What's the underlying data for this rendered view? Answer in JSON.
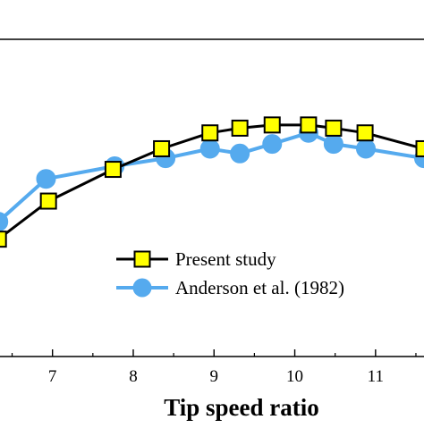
{
  "chart_data": {
    "type": "line",
    "title": "",
    "xlabel": "Tip speed ratio",
    "ylabel": "",
    "xlim": [
      6.35,
      11.6
    ],
    "ylim": [
      0,
      1
    ],
    "x_ticks": [
      7,
      8,
      9,
      10,
      11
    ],
    "x_tick_labels": [
      "7",
      "8",
      "9",
      "10",
      "11"
    ],
    "grid": false,
    "legend_position": "lower-right",
    "series": [
      {
        "name": "Present study",
        "color": "#000000",
        "marker": "square",
        "marker_fill": "#ffff00",
        "x": [
          6.33,
          6.95,
          7.75,
          8.35,
          8.95,
          9.32,
          9.72,
          10.17,
          10.48,
          10.87,
          11.6
        ],
        "y": [
          0.37,
          0.49,
          0.59,
          0.655,
          0.705,
          0.72,
          0.73,
          0.73,
          0.72,
          0.705,
          0.655
        ]
      },
      {
        "name": "Anderson et al. (1982)",
        "color": "#55aaee",
        "marker": "circle",
        "marker_fill": "#55aaee",
        "x": [
          6.33,
          6.92,
          7.77,
          8.4,
          8.95,
          9.32,
          9.72,
          10.17,
          10.48,
          10.88,
          11.6
        ],
        "y": [
          0.425,
          0.56,
          0.6,
          0.625,
          0.655,
          0.64,
          0.67,
          0.705,
          0.67,
          0.655,
          0.625
        ]
      }
    ]
  }
}
